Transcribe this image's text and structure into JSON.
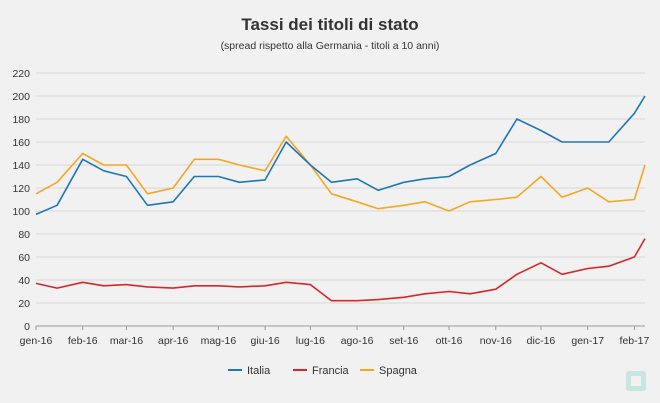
{
  "chart_data": {
    "type": "line",
    "title": "Tassi dei titoli di stato",
    "subtitle": "(spread rispetto alla Germania - titoli a 10 anni)",
    "xlabel": "",
    "ylabel": "",
    "ylim": [
      0,
      220
    ],
    "yticks": [
      0,
      20,
      40,
      60,
      80,
      100,
      120,
      140,
      160,
      180,
      200,
      220
    ],
    "xticks": [
      "gen-16",
      "feb-16",
      "mar-16",
      "apr-16",
      "mag-16",
      "giu-16",
      "lug-16",
      "ago-16",
      "set-16",
      "ott-16",
      "nov-16",
      "dic-16",
      "gen-17",
      "feb-17"
    ],
    "grid": "horizontal",
    "legend_position": "bottom",
    "x": [
      "2016-01-01",
      "2016-01-15",
      "2016-02-01",
      "2016-02-15",
      "2016-03-01",
      "2016-03-15",
      "2016-04-01",
      "2016-04-15",
      "2016-05-01",
      "2016-05-15",
      "2016-06-01",
      "2016-06-15",
      "2016-07-01",
      "2016-07-15",
      "2016-08-01",
      "2016-08-15",
      "2016-09-01",
      "2016-09-15",
      "2016-10-01",
      "2016-10-15",
      "2016-11-01",
      "2016-11-15",
      "2016-12-01",
      "2016-12-15",
      "2017-01-01",
      "2017-01-15",
      "2017-02-01",
      "2017-02-08"
    ],
    "series": [
      {
        "name": "Italia",
        "color": "#1f77b4",
        "values": [
          97,
          105,
          145,
          135,
          130,
          105,
          108,
          130,
          130,
          125,
          127,
          160,
          140,
          125,
          128,
          118,
          125,
          128,
          130,
          140,
          150,
          180,
          170,
          160,
          160,
          160,
          185,
          200
        ]
      },
      {
        "name": "Francia",
        "color": "#d62728",
        "values": [
          37,
          33,
          38,
          35,
          36,
          34,
          33,
          35,
          35,
          34,
          35,
          38,
          36,
          22,
          22,
          23,
          25,
          28,
          30,
          28,
          32,
          45,
          55,
          45,
          50,
          52,
          60,
          76
        ]
      },
      {
        "name": "Spagna",
        "color": "#f5a623",
        "values": [
          115,
          125,
          150,
          140,
          140,
          115,
          120,
          145,
          145,
          140,
          135,
          165,
          140,
          115,
          108,
          102,
          105,
          108,
          100,
          108,
          110,
          112,
          130,
          112,
          120,
          108,
          110,
          140
        ]
      }
    ]
  },
  "brand": {
    "logo_icon": "brand-square-icon"
  }
}
